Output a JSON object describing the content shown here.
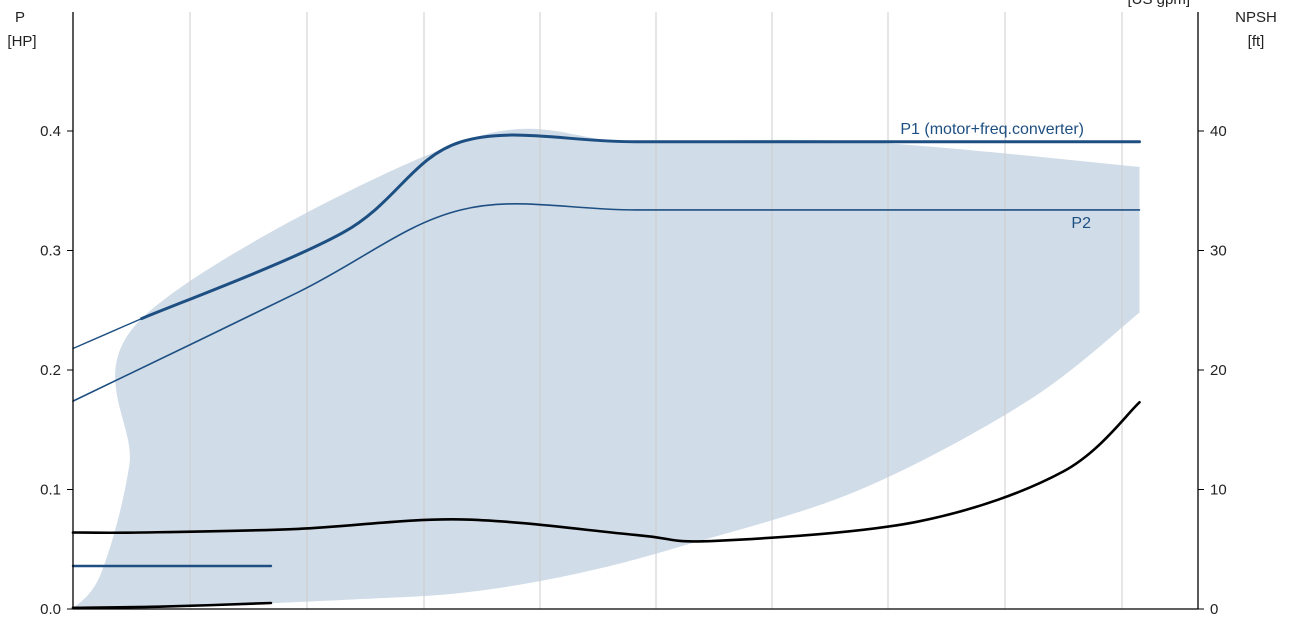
{
  "chart_data": {
    "type": "line",
    "title": "",
    "xlim": [
      0,
      1
    ],
    "left_axis": {
      "label": "P",
      "unit": "[HP]",
      "ylim": [
        0,
        0.4
      ],
      "ticks": [
        0.0,
        0.1,
        0.2,
        0.3,
        0.4
      ],
      "tick_labels": [
        "0.0",
        "0.1",
        "0.2",
        "0.3",
        "0.4"
      ]
    },
    "right_axis": {
      "label": "NPSH",
      "unit": "[ft]",
      "ylim": [
        0,
        40
      ],
      "ticks": [
        0,
        10,
        20,
        30,
        40
      ],
      "tick_labels": [
        "0",
        "10",
        "20",
        "30",
        "40"
      ]
    },
    "top_right_clipped_text": "[US gpm]",
    "grid": true,
    "colors": {
      "primary": "#1e4f82",
      "npsh": "#000000",
      "region": "#d0dce8",
      "grid": "#cccccc"
    },
    "series": [
      {
        "name": "P1 (motor+freq.converter)",
        "axis": "left",
        "x": [
          0.061,
          0.24,
          0.345,
          0.5,
          0.7,
          0.9,
          0.948
        ],
        "y": [
          0.243,
          0.315,
          0.391,
          0.391,
          0.391,
          0.391,
          0.391
        ]
      },
      {
        "name": "P2",
        "axis": "left",
        "x": [
          0,
          0.2,
          0.345,
          0.5,
          0.7,
          0.9,
          0.948
        ],
        "y": [
          0.174,
          0.265,
          0.334,
          0.334,
          0.334,
          0.334,
          0.334
        ]
      },
      {
        "axis": "left",
        "style": "thin",
        "x": [
          0,
          0.061
        ],
        "y": [
          0.218,
          0.243
        ]
      },
      {
        "axis": "right",
        "x": [
          0,
          0.061,
          0.2,
          0.345,
          0.5,
          0.57,
          0.75,
          0.88,
          0.948
        ],
        "y": [
          6.4,
          6.4,
          6.7,
          7.5,
          6.2,
          5.7,
          7.3,
          11.5,
          17.3
        ]
      },
      {
        "axis": "left",
        "x": [
          0,
          0.176
        ],
        "y": [
          0.036,
          0.036
        ]
      },
      {
        "axis": "left",
        "x": [
          0,
          0.08,
          0.176
        ],
        "y": [
          0.001,
          0.002,
          0.005
        ]
      }
    ],
    "operating_region": {
      "upper": {
        "x": [
          0.0,
          0.025,
          0.05,
          0.061,
          0.345,
          0.5,
          0.7,
          0.948
        ],
        "y": [
          0.0,
          0.03,
          0.12,
          0.243,
          0.391,
          0.391,
          0.391,
          0.37
        ]
      },
      "lower": {
        "x": [
          0.0,
          0.1,
          0.25,
          0.35,
          0.45,
          0.55,
          0.7,
          0.85,
          0.948
        ],
        "y": [
          0.0,
          0.002,
          0.008,
          0.014,
          0.03,
          0.055,
          0.1,
          0.175,
          0.248
        ]
      }
    }
  }
}
